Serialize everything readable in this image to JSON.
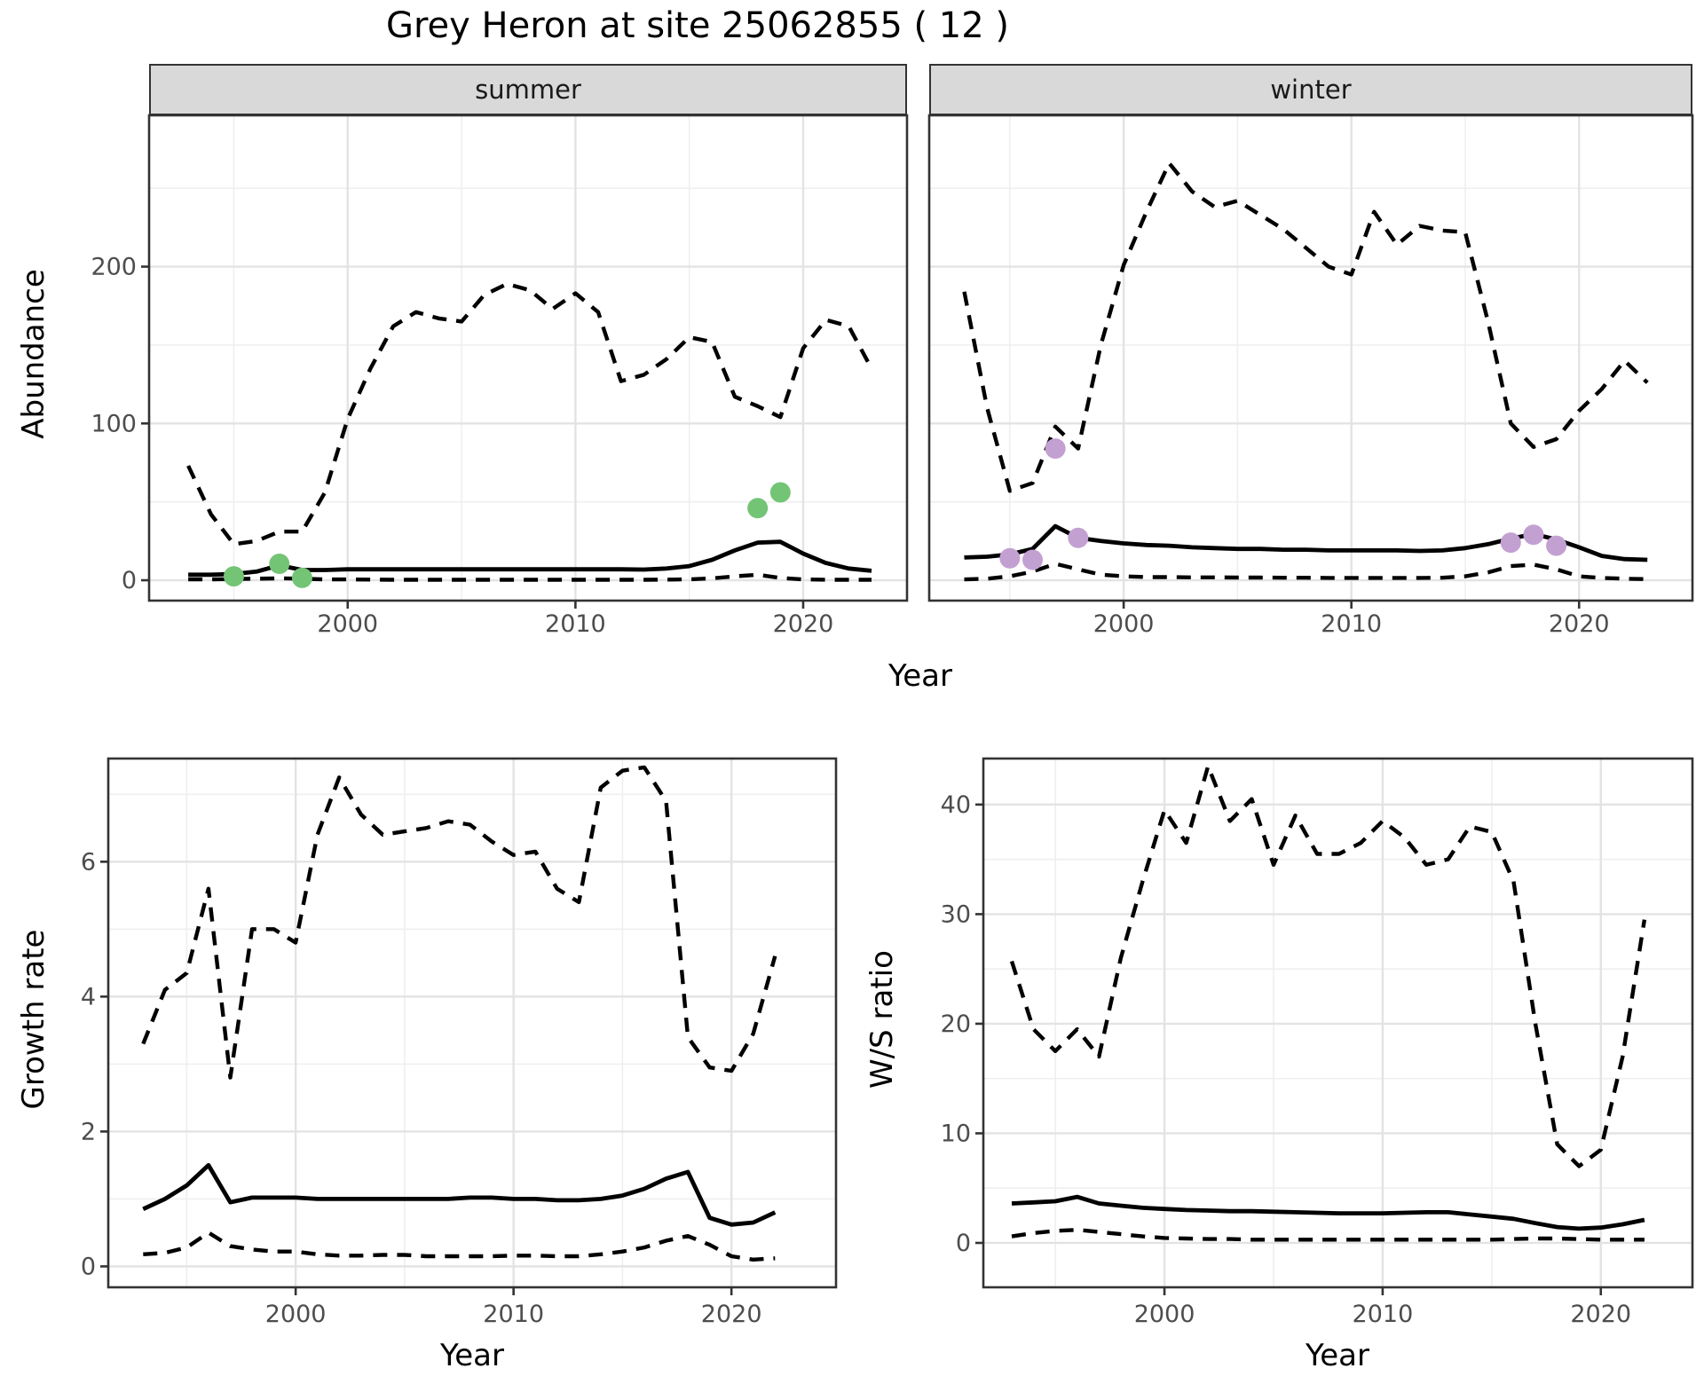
{
  "title": "Grey Heron at site 25062855 ( 12 )",
  "axes": {
    "y_top": "Abundance",
    "x_top": "Year",
    "y_bottom_left": "Growth rate",
    "x_bottom_left": "Year",
    "y_bottom_right": "W/S ratio",
    "x_bottom_right": "Year"
  },
  "colors": {
    "line": "#000000",
    "grid_major": "#e3e3e3",
    "grid_minor": "#efefef",
    "panel_border": "#333333",
    "strip_bg": "#d9d9d9",
    "tick_text": "#4d4d4d",
    "axis_title": "#000000",
    "point_summer": "#74c476",
    "point_winter": "#c3a0d2"
  },
  "chart_data": [
    {
      "id": "summer",
      "type": "line",
      "facet": "summer",
      "x_domain": [
        1991.28,
        2024.56
      ],
      "y_domain": [
        -13,
        296.5
      ],
      "x_major": [
        2000,
        2010,
        2020
      ],
      "x_minor": [
        1995,
        2005,
        2015
      ],
      "y_major": [
        0,
        100,
        200
      ],
      "y_minor": [
        50,
        150,
        250
      ],
      "x_tick_labels": [
        "2000",
        "2010",
        "2020"
      ],
      "y_tick_labels": [
        "0",
        "100",
        "200"
      ],
      "years": [
        1993,
        1994,
        1995,
        1996,
        1997,
        1998,
        1999,
        2000,
        2001,
        2002,
        2003,
        2004,
        2005,
        2006,
        2007,
        2008,
        2009,
        2010,
        2011,
        2012,
        2013,
        2014,
        2015,
        2016,
        2017,
        2018,
        2019,
        2020,
        2021,
        2022,
        2023
      ],
      "series": [
        {
          "name": "upper_95ci",
          "style": "dashed",
          "values": [
            73,
            42,
            23,
            25,
            31,
            31,
            56,
            103,
            135,
            162,
            171,
            167,
            165,
            182,
            189,
            185,
            173,
            183,
            171,
            127,
            131,
            141,
            155,
            152,
            117,
            111,
            104,
            148,
            166,
            162,
            135
          ]
        },
        {
          "name": "lower_95ci",
          "style": "dashed",
          "values": [
            0.5,
            0.5,
            0.8,
            1,
            1.2,
            1,
            0.5,
            0.5,
            0.4,
            0.3,
            0.3,
            0.3,
            0.3,
            0.3,
            0.3,
            0.3,
            0.3,
            0.3,
            0.3,
            0.3,
            0.3,
            0.4,
            0.6,
            1.2,
            2.5,
            3.5,
            1.5,
            0.5,
            0.3,
            0.3,
            0.3
          ]
        },
        {
          "name": "median",
          "style": "solid",
          "values": [
            3.5,
            3.5,
            4,
            5.5,
            9.5,
            6.5,
            6.5,
            7,
            7,
            7,
            7,
            7,
            7,
            7,
            7,
            7,
            7,
            7,
            7,
            7,
            6.8,
            7.5,
            9,
            13,
            19,
            24,
            24.5,
            17,
            11,
            7.5,
            6
          ]
        }
      ],
      "points": {
        "color_key": "point_summer",
        "data": [
          [
            1995,
            2.5
          ],
          [
            1997,
            10.5
          ],
          [
            1998,
            1.5
          ],
          [
            2018,
            46
          ],
          [
            2019,
            56
          ]
        ]
      }
    },
    {
      "id": "winter",
      "type": "line",
      "facet": "winter",
      "x_domain": [
        1991.46,
        2024.98
      ],
      "y_domain": [
        -13,
        296.5
      ],
      "x_major": [
        2000,
        2010,
        2020
      ],
      "x_minor": [
        1995,
        2005,
        2015
      ],
      "y_major": [
        0,
        100,
        200
      ],
      "y_minor": [
        50,
        150,
        250
      ],
      "x_tick_labels": [
        "2000",
        "2010",
        "2020"
      ],
      "y_tick_labels": [],
      "years": [
        1993,
        1994,
        1995,
        1996,
        1997,
        1998,
        1999,
        2000,
        2001,
        2002,
        2003,
        2004,
        2005,
        2006,
        2007,
        2008,
        2009,
        2010,
        2011,
        2012,
        2013,
        2014,
        2015,
        2016,
        2017,
        2018,
        2019,
        2020,
        2021,
        2022,
        2023
      ],
      "series": [
        {
          "name": "upper_95ci",
          "style": "dashed",
          "values": [
            184,
            110,
            57,
            62,
            98,
            84,
            150,
            201,
            235,
            266,
            248,
            238,
            242,
            233,
            224,
            212,
            200,
            195,
            235,
            214,
            226,
            223,
            222,
            165,
            100,
            85,
            90,
            108,
            122,
            140,
            126
          ]
        },
        {
          "name": "lower_95ci",
          "style": "dashed",
          "values": [
            0.5,
            1,
            2.5,
            5.5,
            10.5,
            7,
            3.5,
            2.5,
            2,
            2,
            1.8,
            1.8,
            1.7,
            1.7,
            1.6,
            1.6,
            1.5,
            1.5,
            1.5,
            1.5,
            1.5,
            1.6,
            2.5,
            5,
            9,
            10,
            7,
            2.5,
            1.5,
            1,
            0.7
          ]
        },
        {
          "name": "median",
          "style": "solid",
          "values": [
            14.5,
            15,
            16.5,
            20,
            34.5,
            27,
            25,
            23.5,
            22.5,
            22,
            21,
            20.5,
            20,
            20,
            19.5,
            19.5,
            19,
            19,
            19,
            19,
            18.7,
            19,
            20.5,
            23,
            26.5,
            29.5,
            26,
            21,
            15.5,
            13.5,
            13
          ]
        }
      ],
      "points": {
        "color_key": "point_winter",
        "data": [
          [
            1995,
            14
          ],
          [
            1996,
            13
          ],
          [
            1997,
            84
          ],
          [
            1998,
            27
          ],
          [
            2017,
            24
          ],
          [
            2018,
            29
          ],
          [
            2019,
            22
          ]
        ]
      }
    },
    {
      "id": "growth",
      "type": "line",
      "facet": "",
      "x_domain": [
        1991.4,
        2024.8
      ],
      "y_domain": [
        -0.31,
        7.53
      ],
      "x_major": [
        2000,
        2010,
        2020
      ],
      "x_minor": [
        1995,
        2005,
        2015
      ],
      "y_major": [
        0,
        2,
        4,
        6
      ],
      "y_minor": [
        1,
        3,
        5,
        7
      ],
      "x_tick_labels": [
        "2000",
        "2010",
        "2020"
      ],
      "y_tick_labels": [
        "0",
        "2",
        "4",
        "6"
      ],
      "years": [
        1993,
        1994,
        1995,
        1996,
        1997,
        1998,
        1999,
        2000,
        2001,
        2002,
        2003,
        2004,
        2005,
        2006,
        2007,
        2008,
        2009,
        2010,
        2011,
        2012,
        2013,
        2014,
        2015,
        2016,
        2017,
        2018,
        2019,
        2020,
        2021,
        2022
      ],
      "series": [
        {
          "name": "upper_95ci",
          "style": "dashed",
          "values": [
            3.3,
            4.1,
            4.35,
            5.6,
            2.8,
            5.0,
            5.0,
            4.8,
            6.4,
            7.25,
            6.7,
            6.4,
            6.45,
            6.5,
            6.6,
            6.55,
            6.3,
            6.1,
            6.15,
            5.6,
            5.4,
            7.1,
            7.35,
            7.4,
            6.9,
            3.4,
            2.95,
            2.9,
            3.45,
            4.6
          ]
        },
        {
          "name": "lower_95ci",
          "style": "dashed",
          "values": [
            0.18,
            0.2,
            0.28,
            0.5,
            0.3,
            0.25,
            0.22,
            0.22,
            0.18,
            0.16,
            0.16,
            0.17,
            0.17,
            0.15,
            0.15,
            0.15,
            0.15,
            0.16,
            0.16,
            0.15,
            0.15,
            0.18,
            0.22,
            0.28,
            0.38,
            0.45,
            0.32,
            0.15,
            0.1,
            0.12
          ]
        },
        {
          "name": "median",
          "style": "solid",
          "values": [
            0.85,
            1.0,
            1.2,
            1.5,
            0.95,
            1.02,
            1.02,
            1.02,
            1.0,
            1.0,
            1.0,
            1.0,
            1.0,
            1.0,
            1.0,
            1.02,
            1.02,
            1.0,
            1.0,
            0.98,
            0.98,
            1.0,
            1.05,
            1.15,
            1.3,
            1.4,
            0.72,
            0.62,
            0.65,
            0.8
          ]
        }
      ],
      "points": {
        "color_key": "point_summer",
        "data": []
      }
    },
    {
      "id": "ws",
      "type": "line",
      "facet": "",
      "x_domain": [
        1991.7,
        2024.2
      ],
      "y_domain": [
        -4.05,
        44.2
      ],
      "x_major": [
        2000,
        2010,
        2020
      ],
      "x_minor": [
        1995,
        2005,
        2015
      ],
      "y_major": [
        0,
        10,
        20,
        30,
        40
      ],
      "y_minor": [
        5,
        15,
        25,
        35
      ],
      "x_tick_labels": [
        "2000",
        "2010",
        "2020"
      ],
      "y_tick_labels": [
        "0",
        "10",
        "20",
        "30",
        "40"
      ],
      "years": [
        1993,
        1994,
        1995,
        1996,
        1997,
        1998,
        1999,
        2000,
        2001,
        2002,
        2003,
        2004,
        2005,
        2006,
        2007,
        2008,
        2009,
        2010,
        2011,
        2012,
        2013,
        2014,
        2015,
        2016,
        2017,
        2018,
        2019,
        2020,
        2021,
        2022
      ],
      "series": [
        {
          "name": "upper_95ci",
          "style": "dashed",
          "values": [
            25.7,
            19.5,
            17.5,
            19.5,
            17,
            26,
            33,
            39.5,
            36.5,
            43.5,
            38.5,
            40.5,
            34.5,
            39,
            35.5,
            35.5,
            36.5,
            38.5,
            37,
            34.5,
            35,
            38,
            37.5,
            33,
            20,
            9,
            7,
            8.5,
            17,
            29.5
          ]
        },
        {
          "name": "lower_95ci",
          "style": "dashed",
          "values": [
            0.6,
            0.9,
            1.1,
            1.2,
            1.0,
            0.8,
            0.6,
            0.45,
            0.4,
            0.35,
            0.35,
            0.3,
            0.3,
            0.3,
            0.3,
            0.3,
            0.3,
            0.3,
            0.3,
            0.3,
            0.3,
            0.3,
            0.3,
            0.35,
            0.4,
            0.4,
            0.35,
            0.3,
            0.3,
            0.3
          ]
        },
        {
          "name": "median",
          "style": "solid",
          "values": [
            3.6,
            3.7,
            3.8,
            4.2,
            3.6,
            3.4,
            3.2,
            3.1,
            3.0,
            2.95,
            2.9,
            2.9,
            2.85,
            2.8,
            2.75,
            2.7,
            2.7,
            2.7,
            2.75,
            2.8,
            2.8,
            2.6,
            2.4,
            2.2,
            1.8,
            1.45,
            1.3,
            1.4,
            1.7,
            2.1
          ]
        }
      ],
      "points": {
        "color_key": "point_winter",
        "data": []
      }
    }
  ]
}
